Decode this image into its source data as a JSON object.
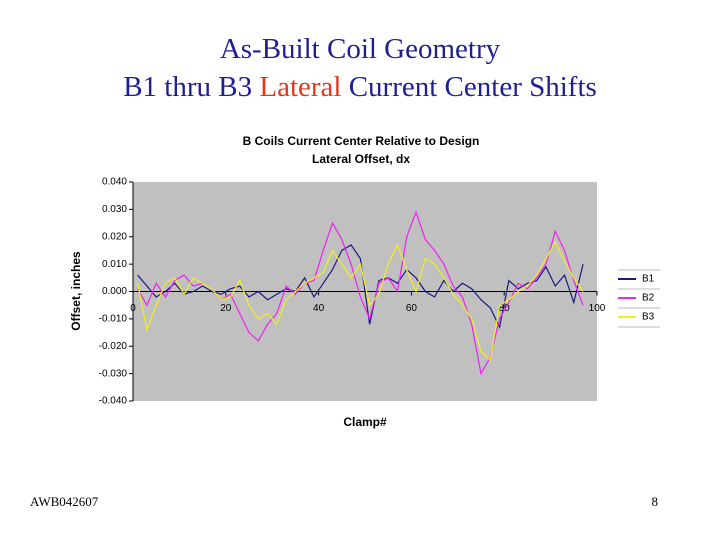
{
  "slide": {
    "title_line1": "As-Built Coil Geometry",
    "title_line2": [
      "B1 thru B3 ",
      "Lateral",
      " Current Center Shifts"
    ],
    "footer_left": "AWB042607",
    "footer_right": "8"
  },
  "chart_data": {
    "type": "line",
    "title": [
      "B Coils Current Center Relative to Design",
      "Lateral Offset, dx"
    ],
    "x_label": "Clamp#",
    "y_label": "Offset, inches",
    "x": [
      1,
      3,
      5,
      7,
      9,
      11,
      13,
      15,
      17,
      19,
      21,
      23,
      25,
      27,
      29,
      31,
      33,
      35,
      37,
      39,
      41,
      43,
      45,
      47,
      49,
      51,
      53,
      55,
      57,
      59,
      61,
      63,
      65,
      67,
      69,
      71,
      73,
      75,
      77,
      79,
      81,
      83,
      85,
      87,
      89,
      91,
      93,
      95,
      97
    ],
    "series": [
      {
        "name": "B1",
        "color": "#1a1a80",
        "values": [
          0.006,
          0.002,
          -0.002,
          0.0,
          0.003,
          -0.001,
          0.0,
          0.002,
          0.0,
          -0.001,
          0.001,
          0.002,
          -0.002,
          0.0,
          -0.003,
          -0.001,
          0.001,
          0.0,
          0.005,
          -0.002,
          0.003,
          0.008,
          0.015,
          0.017,
          0.012,
          -0.012,
          0.004,
          0.005,
          0.003,
          0.008,
          0.005,
          0.0,
          -0.002,
          0.004,
          0.0,
          0.003,
          0.001,
          -0.003,
          -0.006,
          -0.013,
          0.004,
          0.001,
          0.003,
          0.004,
          0.009,
          0.002,
          0.006,
          -0.004,
          0.01
        ]
      },
      {
        "name": "B2",
        "color": "#ee22ee",
        "values": [
          0.001,
          -0.005,
          0.003,
          -0.002,
          0.004,
          0.006,
          0.002,
          0.003,
          0.001,
          -0.003,
          -0.001,
          -0.008,
          -0.015,
          -0.018,
          -0.012,
          -0.008,
          0.002,
          -0.001,
          0.003,
          0.004,
          0.015,
          0.025,
          0.019,
          0.01,
          -0.002,
          -0.01,
          0.003,
          0.005,
          0.0,
          0.02,
          0.029,
          0.019,
          0.015,
          0.01,
          0.002,
          -0.002,
          -0.012,
          -0.03,
          -0.024,
          -0.01,
          -0.004,
          0.003,
          0.001,
          0.005,
          0.01,
          0.022,
          0.015,
          0.004,
          -0.005
        ]
      },
      {
        "name": "B3",
        "color": "#f0f020",
        "values": [
          0.003,
          -0.014,
          -0.005,
          0.003,
          0.005,
          -0.001,
          0.005,
          0.003,
          0.001,
          -0.003,
          -0.002,
          0.004,
          -0.005,
          -0.01,
          -0.008,
          -0.012,
          -0.003,
          0.0,
          0.003,
          0.005,
          0.007,
          0.015,
          0.01,
          0.005,
          0.01,
          -0.005,
          -0.001,
          0.01,
          0.017,
          0.008,
          0.0,
          0.012,
          0.01,
          0.005,
          -0.001,
          -0.005,
          -0.01,
          -0.022,
          -0.025,
          -0.005,
          -0.003,
          0.0,
          0.002,
          0.006,
          0.012,
          0.018,
          0.011,
          0.005,
          0.0
        ]
      }
    ],
    "xlim": [
      0,
      100
    ],
    "xticks": [
      0,
      20,
      40,
      60,
      80,
      100
    ],
    "ylim": [
      -0.04,
      0.04
    ],
    "yticks": [
      {
        "value": 0.04,
        "label": "0.040"
      },
      {
        "value": 0.03,
        "label": "0.030"
      },
      {
        "value": 0.02,
        "label": "0.020"
      },
      {
        "value": 0.01,
        "label": "0.010"
      },
      {
        "value": 0,
        "label": "0.000"
      },
      {
        "value": -0.01,
        "label": "-0.010"
      },
      {
        "value": -0.02,
        "label": "-0.020"
      },
      {
        "value": -0.03,
        "label": "-0.030"
      },
      {
        "value": -0.04,
        "label": "-0.040"
      }
    ],
    "plot_background": "#c0c0c0",
    "legend": "right"
  }
}
